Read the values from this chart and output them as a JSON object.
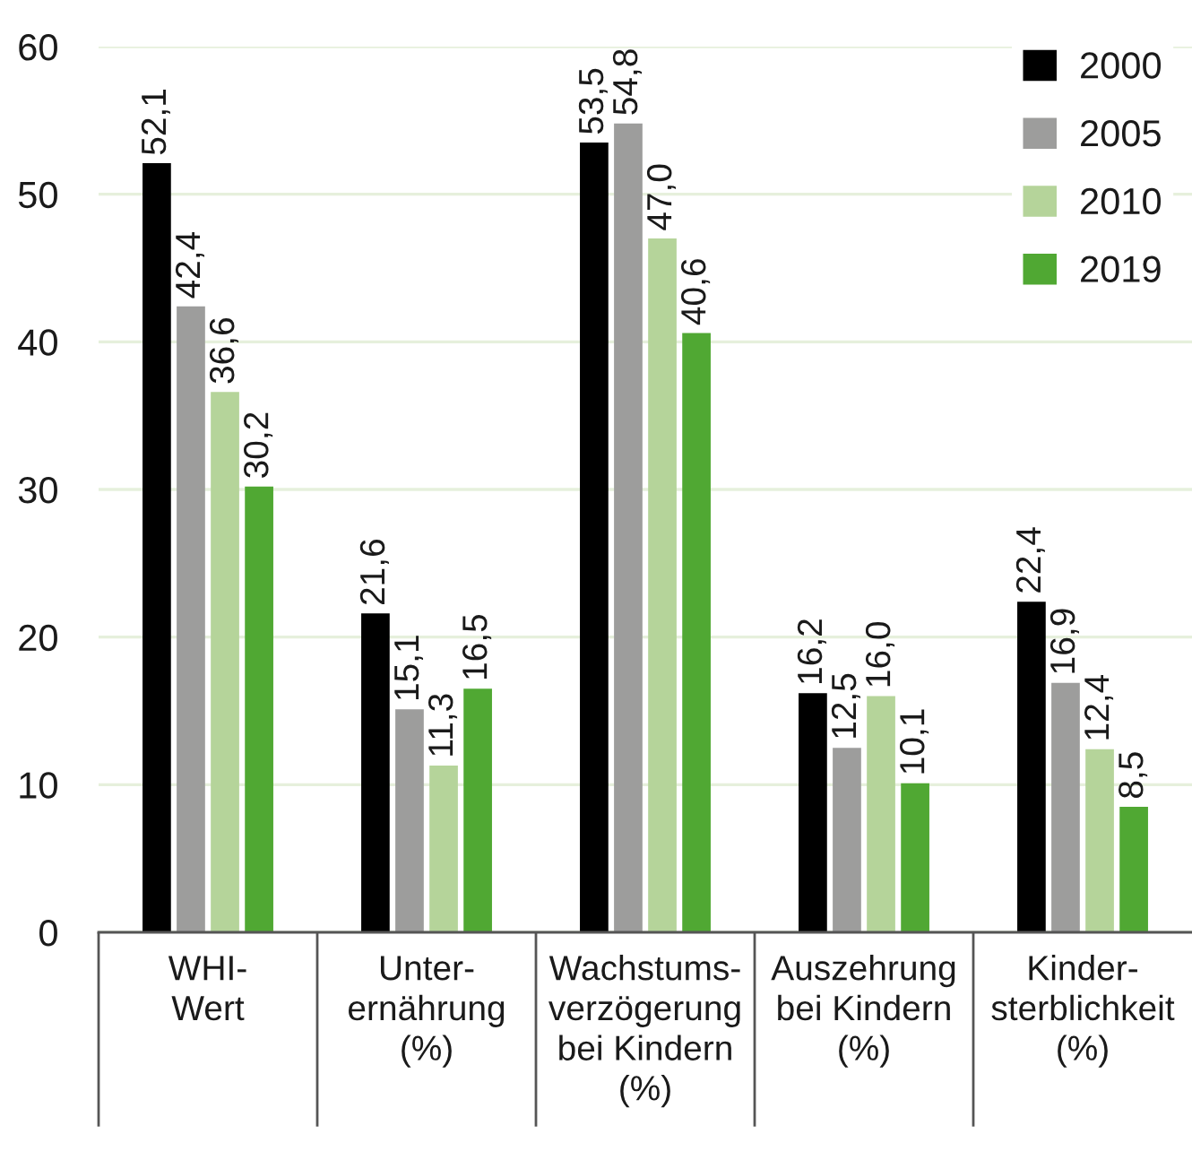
{
  "chart_data": {
    "type": "bar",
    "categories": [
      "WHI-\nWert",
      "Unter-\nernährung\n(%)",
      "Wachstums-\nverzögerung\nbei Kindern\n(%)",
      "Auszehrung\nbei Kindern\n(%)",
      "Kinder-\nsterblichkeit\n(%)"
    ],
    "series": [
      {
        "name": "2000",
        "color": "#000000",
        "values": [
          52.1,
          21.6,
          53.5,
          16.2,
          22.4
        ],
        "value_labels": [
          "52,1",
          "21,6",
          "53,5",
          "16,2",
          "22,4"
        ]
      },
      {
        "name": "2005",
        "color": "#9d9d9c",
        "values": [
          42.4,
          15.1,
          54.8,
          12.5,
          16.9
        ],
        "value_labels": [
          "42,4",
          "15,1",
          "54,8",
          "12,5",
          "16,9"
        ]
      },
      {
        "name": "2010",
        "color": "#b5d49a",
        "values": [
          36.6,
          11.3,
          47.0,
          16.0,
          12.4
        ],
        "value_labels": [
          "36,6",
          "11,3",
          "47,0",
          "16,0",
          "12,4"
        ]
      },
      {
        "name": "2019",
        "color": "#50a833",
        "values": [
          30.2,
          16.5,
          40.6,
          10.1,
          8.5
        ],
        "value_labels": [
          "30,2",
          "16,5",
          "40,6",
          "10,1",
          "8,5"
        ]
      }
    ],
    "ylim": [
      0,
      60
    ],
    "yticks": [
      0,
      10,
      20,
      30,
      40,
      50,
      60
    ],
    "grid": "y",
    "legend": "top right"
  }
}
